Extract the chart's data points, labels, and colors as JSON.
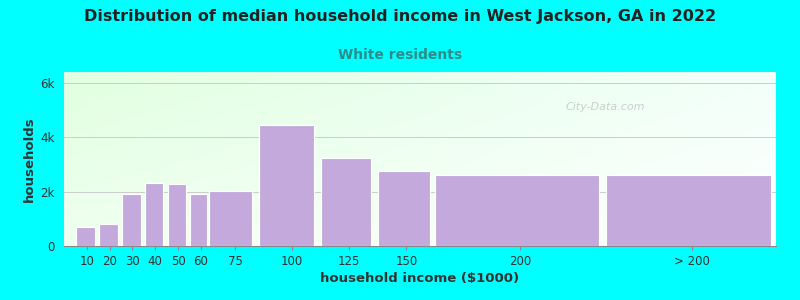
{
  "title": "Distribution of median household income in West Jackson, GA in 2022",
  "subtitle": "White residents",
  "xlabel": "household income ($1000)",
  "ylabel": "households",
  "background_color": "#00FFFF",
  "bar_color": "#C4AADC",
  "bar_edge_color": "#FFFFFF",
  "categories": [
    "10",
    "20",
    "30",
    "40",
    "50",
    "60",
    "75",
    "100",
    "125",
    "150",
    "200",
    "> 200"
  ],
  "values": [
    700,
    820,
    1900,
    2300,
    2280,
    1900,
    2020,
    4450,
    3220,
    2750,
    2620,
    2620
  ],
  "bar_lefts": [
    5,
    15,
    25,
    35,
    45,
    55,
    63,
    85,
    112,
    137,
    162,
    237
  ],
  "bar_widths": [
    9,
    9,
    9,
    9,
    9,
    8,
    20,
    25,
    23,
    24,
    73,
    73
  ],
  "ytick_labels": [
    "0",
    "2k",
    "4k",
    "6k"
  ],
  "ytick_values": [
    0,
    2000,
    4000,
    6000
  ],
  "ylim": [
    0,
    6400
  ],
  "xlim": [
    0,
    312
  ],
  "title_fontsize": 11.5,
  "subtitle_fontsize": 10,
  "subtitle_color": "#2E8B8B",
  "axis_label_fontsize": 9.5,
  "tick_fontsize": 8.5,
  "watermark_text": "City-Data.com",
  "watermark_color": "#BBBBBB"
}
